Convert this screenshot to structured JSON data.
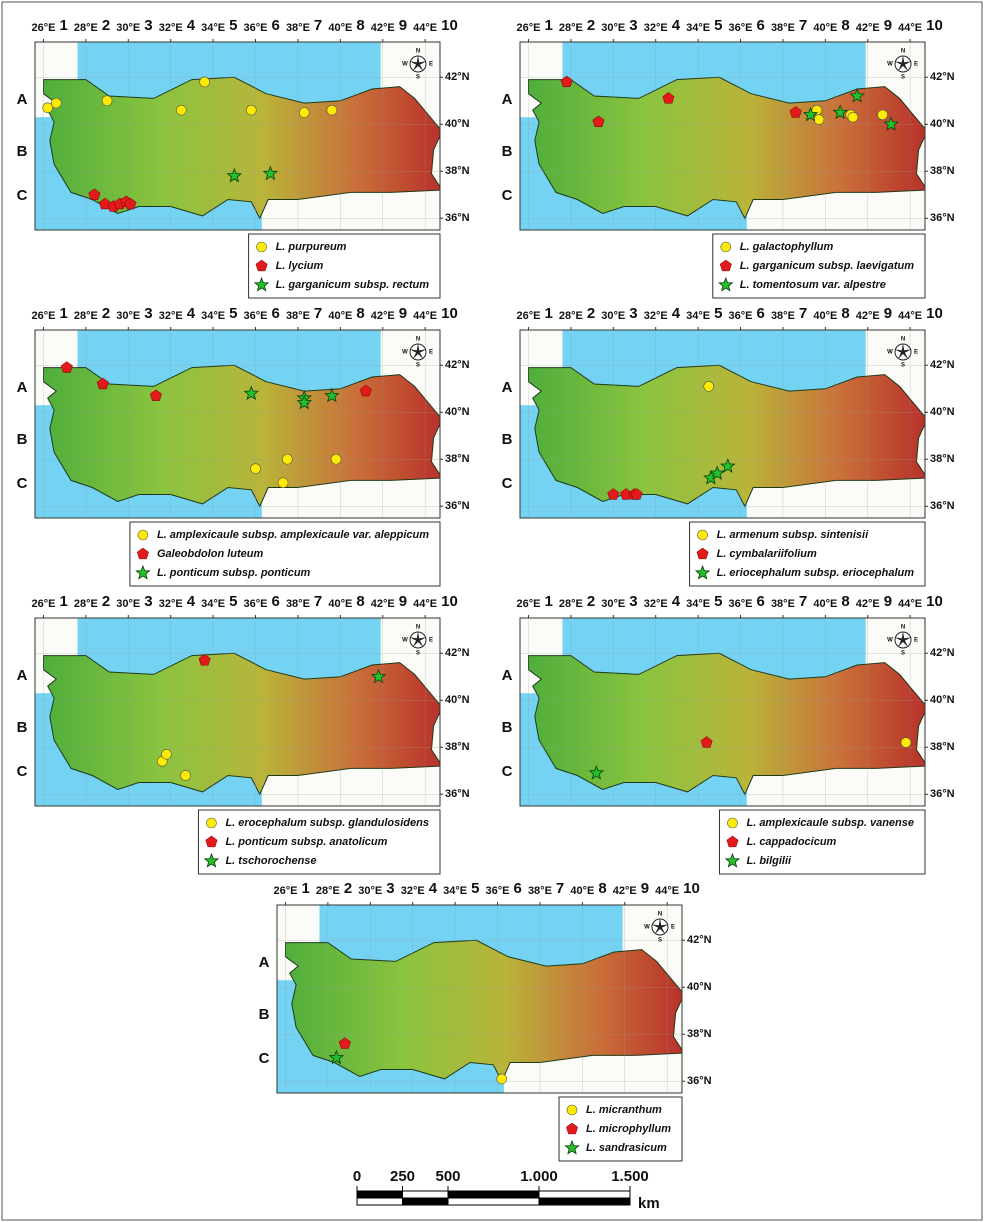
{
  "chart_data": [
    {
      "type": "map",
      "xlim": [
        25.6,
        44.7
      ],
      "ylim": [
        35.5,
        43.5
      ],
      "xticks": [
        {
          "value": 26,
          "label": "26°E"
        },
        {
          "value": 28,
          "label": "28°E"
        },
        {
          "value": 30,
          "label": "30°E"
        },
        {
          "value": 32,
          "label": "32°E"
        },
        {
          "value": 34,
          "label": "34°E"
        },
        {
          "value": 36,
          "label": "36°E"
        },
        {
          "value": 38,
          "label": "38°E"
        },
        {
          "value": 40,
          "label": "40°E"
        },
        {
          "value": 42,
          "label": "42°E"
        },
        {
          "value": 44,
          "label": "44°E"
        }
      ],
      "yticks": [
        {
          "value": 42,
          "label": "42°N"
        },
        {
          "value": 40,
          "label": "40°N"
        },
        {
          "value": 38,
          "label": "38°N"
        },
        {
          "value": 36,
          "label": "36°N"
        }
      ],
      "grid_columns": [
        "1",
        "2",
        "3",
        "4",
        "5",
        "6",
        "7",
        "8",
        "9",
        "10"
      ],
      "grid_rows": [
        "A",
        "B",
        "C"
      ],
      "compass": [
        "N",
        "E",
        "S",
        "W"
      ],
      "grid": true,
      "series": [
        {
          "name": "L. purpureum",
          "color": "#ffeb00",
          "marker": "circle",
          "x": [
            26.2,
            26.6,
            29.0,
            32.5,
            33.6,
            35.8,
            38.3,
            39.6
          ],
          "values": [
            40.7,
            40.9,
            41.0,
            40.6,
            41.8,
            40.6,
            40.5,
            40.6
          ]
        },
        {
          "name": "L. lycium",
          "color": "#e31a1c",
          "marker": "pentagon",
          "x": [
            28.4,
            28.9,
            29.3,
            29.6,
            29.9,
            30.1
          ],
          "values": [
            37.0,
            36.6,
            36.5,
            36.6,
            36.7,
            36.6
          ]
        },
        {
          "name": "L. garganicum subsp. rectum",
          "color": "#22c02a",
          "marker": "star",
          "x": [
            35.0,
            36.7
          ],
          "values": [
            37.8,
            37.9
          ]
        }
      ]
    },
    {
      "type": "map",
      "xlim": [
        25.6,
        44.7
      ],
      "ylim": [
        35.5,
        43.5
      ],
      "xticks": [
        {
          "value": 26,
          "label": "26°E"
        },
        {
          "value": 28,
          "label": "28°E"
        },
        {
          "value": 30,
          "label": "30°E"
        },
        {
          "value": 32,
          "label": "32°E"
        },
        {
          "value": 34,
          "label": "34°E"
        },
        {
          "value": 36,
          "label": "36°E"
        },
        {
          "value": 38,
          "label": "38°E"
        },
        {
          "value": 40,
          "label": "40°E"
        },
        {
          "value": 42,
          "label": "42°E"
        },
        {
          "value": 44,
          "label": "44°E"
        }
      ],
      "yticks": [
        {
          "value": 42,
          "label": "42°N"
        },
        {
          "value": 40,
          "label": "40°N"
        },
        {
          "value": 38,
          "label": "38°N"
        },
        {
          "value": 36,
          "label": "36°N"
        }
      ],
      "grid_columns": [
        "1",
        "2",
        "3",
        "4",
        "5",
        "6",
        "7",
        "8",
        "9",
        "10"
      ],
      "grid_rows": [
        "A",
        "B",
        "C"
      ],
      "compass": [
        "N",
        "E",
        "S",
        "W"
      ],
      "grid": true,
      "series": [
        {
          "name": "L. galactophyllum",
          "color": "#ffeb00",
          "marker": "circle",
          "x": [
            39.6,
            39.7,
            41.2,
            41.3,
            42.7
          ],
          "values": [
            40.6,
            40.2,
            40.4,
            40.3,
            40.4
          ]
        },
        {
          "name": "L. garganicum subsp. laevigatum",
          "color": "#e31a1c",
          "marker": "pentagon",
          "x": [
            27.8,
            29.3,
            32.6,
            38.6
          ],
          "values": [
            41.8,
            40.1,
            41.1,
            40.5
          ]
        },
        {
          "name": "L. tomentosum var. alpestre",
          "color": "#22c02a",
          "marker": "star",
          "x": [
            39.3,
            40.7,
            41.5,
            43.1
          ],
          "values": [
            40.4,
            40.5,
            41.2,
            40.0
          ]
        }
      ]
    },
    {
      "type": "map",
      "xlim": [
        25.6,
        44.7
      ],
      "ylim": [
        35.5,
        43.5
      ],
      "xticks": [
        {
          "value": 26,
          "label": "26°E"
        },
        {
          "value": 28,
          "label": "28°E"
        },
        {
          "value": 30,
          "label": "30°E"
        },
        {
          "value": 32,
          "label": "32°E"
        },
        {
          "value": 34,
          "label": "34°E"
        },
        {
          "value": 36,
          "label": "36°E"
        },
        {
          "value": 38,
          "label": "38°E"
        },
        {
          "value": 40,
          "label": "40°E"
        },
        {
          "value": 42,
          "label": "42°E"
        },
        {
          "value": 44,
          "label": "44°E"
        }
      ],
      "yticks": [
        {
          "value": 42,
          "label": "42°N"
        },
        {
          "value": 40,
          "label": "40°N"
        },
        {
          "value": 38,
          "label": "38°N"
        },
        {
          "value": 36,
          "label": "36°N"
        }
      ],
      "grid_columns": [
        "1",
        "2",
        "3",
        "4",
        "5",
        "6",
        "7",
        "8",
        "9",
        "10"
      ],
      "grid_rows": [
        "A",
        "B",
        "C"
      ],
      "compass": [
        "N",
        "E",
        "S",
        "W"
      ],
      "grid": true,
      "series": [
        {
          "name": "L. amplexicaule subsp. amplexicaule var. aleppicum",
          "color": "#ffeb00",
          "marker": "circle",
          "x": [
            36.0,
            37.3,
            37.5,
            39.8
          ],
          "values": [
            37.6,
            37.0,
            38.0,
            38.0
          ]
        },
        {
          "name": "Galeobdolon luteum",
          "color": "#e31a1c",
          "marker": "pentagon",
          "x": [
            27.1,
            28.8,
            31.3,
            41.2
          ],
          "values": [
            41.9,
            41.2,
            40.7,
            40.9
          ]
        },
        {
          "name": "L. ponticum subsp. ponticum",
          "color": "#22c02a",
          "marker": "star",
          "x": [
            35.8,
            38.3,
            38.3,
            39.6
          ],
          "values": [
            40.8,
            40.6,
            40.4,
            40.7
          ]
        }
      ]
    },
    {
      "type": "map",
      "xlim": [
        25.6,
        44.7
      ],
      "ylim": [
        35.5,
        43.5
      ],
      "xticks": [
        {
          "value": 26,
          "label": "26°E"
        },
        {
          "value": 28,
          "label": "28°E"
        },
        {
          "value": 30,
          "label": "30°E"
        },
        {
          "value": 32,
          "label": "32°E"
        },
        {
          "value": 34,
          "label": "34°E"
        },
        {
          "value": 36,
          "label": "36°E"
        },
        {
          "value": 38,
          "label": "38°E"
        },
        {
          "value": 40,
          "label": "40°E"
        },
        {
          "value": 42,
          "label": "42°E"
        },
        {
          "value": 44,
          "label": "44°E"
        }
      ],
      "yticks": [
        {
          "value": 42,
          "label": "42°N"
        },
        {
          "value": 40,
          "label": "40°N"
        },
        {
          "value": 38,
          "label": "38°N"
        },
        {
          "value": 36,
          "label": "36°N"
        }
      ],
      "grid_columns": [
        "1",
        "2",
        "3",
        "4",
        "5",
        "6",
        "7",
        "8",
        "9",
        "10"
      ],
      "grid_rows": [
        "A",
        "B",
        "C"
      ],
      "compass": [
        "N",
        "E",
        "S",
        "W"
      ],
      "grid": true,
      "series": [
        {
          "name": "L. armenum subsp. sintenisii",
          "color": "#ffeb00",
          "marker": "circle",
          "x": [
            34.5
          ],
          "values": [
            41.1
          ]
        },
        {
          "name": "L. cymbalariifolium",
          "color": "#e31a1c",
          "marker": "pentagon",
          "x": [
            30.0,
            30.6,
            31.0,
            31.1
          ],
          "values": [
            36.5,
            36.5,
            36.5,
            36.5
          ]
        },
        {
          "name": "L. eriocephalum subsp. eriocephalum",
          "color": "#22c02a",
          "marker": "star",
          "x": [
            34.6,
            34.9,
            35.4
          ],
          "values": [
            37.2,
            37.4,
            37.7
          ]
        }
      ]
    },
    {
      "type": "map",
      "xlim": [
        25.6,
        44.7
      ],
      "ylim": [
        35.5,
        43.5
      ],
      "xticks": [
        {
          "value": 26,
          "label": "26°E"
        },
        {
          "value": 28,
          "label": "28°E"
        },
        {
          "value": 30,
          "label": "30°E"
        },
        {
          "value": 32,
          "label": "32°E"
        },
        {
          "value": 34,
          "label": "34°E"
        },
        {
          "value": 36,
          "label": "36°E"
        },
        {
          "value": 38,
          "label": "38°E"
        },
        {
          "value": 40,
          "label": "40°E"
        },
        {
          "value": 42,
          "label": "42°E"
        },
        {
          "value": 44,
          "label": "44°E"
        }
      ],
      "yticks": [
        {
          "value": 42,
          "label": "42°N"
        },
        {
          "value": 40,
          "label": "40°N"
        },
        {
          "value": 38,
          "label": "38°N"
        },
        {
          "value": 36,
          "label": "36°N"
        }
      ],
      "grid_columns": [
        "1",
        "2",
        "3",
        "4",
        "5",
        "6",
        "7",
        "8",
        "9",
        "10"
      ],
      "grid_rows": [
        "A",
        "B",
        "C"
      ],
      "compass": [
        "N",
        "E",
        "S",
        "W"
      ],
      "grid": true,
      "series": [
        {
          "name": "L. erocephalum subsp. glandulosidens",
          "color": "#ffeb00",
          "marker": "circle",
          "x": [
            31.6,
            31.8,
            32.7
          ],
          "values": [
            37.4,
            37.7,
            36.8
          ]
        },
        {
          "name": "L. ponticum subsp. anatolicum",
          "color": "#e31a1c",
          "marker": "pentagon",
          "x": [
            33.6
          ],
          "values": [
            41.7
          ]
        },
        {
          "name": "L. tschorochense",
          "color": "#22c02a",
          "marker": "star",
          "x": [
            41.8
          ],
          "values": [
            41.0
          ]
        }
      ]
    },
    {
      "type": "map",
      "xlim": [
        25.6,
        44.7
      ],
      "ylim": [
        35.5,
        43.5
      ],
      "xticks": [
        {
          "value": 26,
          "label": "26°E"
        },
        {
          "value": 28,
          "label": "28°E"
        },
        {
          "value": 30,
          "label": "30°E"
        },
        {
          "value": 32,
          "label": "32°E"
        },
        {
          "value": 34,
          "label": "34°E"
        },
        {
          "value": 36,
          "label": "36°E"
        },
        {
          "value": 38,
          "label": "38°E"
        },
        {
          "value": 40,
          "label": "40°E"
        },
        {
          "value": 42,
          "label": "42°E"
        },
        {
          "value": 44,
          "label": "44°E"
        }
      ],
      "yticks": [
        {
          "value": 42,
          "label": "42°N"
        },
        {
          "value": 40,
          "label": "40°N"
        },
        {
          "value": 38,
          "label": "38°N"
        },
        {
          "value": 36,
          "label": "36°N"
        }
      ],
      "grid_columns": [
        "1",
        "2",
        "3",
        "4",
        "5",
        "6",
        "7",
        "8",
        "9",
        "10"
      ],
      "grid_rows": [
        "A",
        "B",
        "C"
      ],
      "compass": [
        "N",
        "E",
        "S",
        "W"
      ],
      "grid": true,
      "series": [
        {
          "name": "L. amplexicaule subsp. vanense",
          "color": "#ffeb00",
          "marker": "circle",
          "x": [
            43.8
          ],
          "values": [
            38.2
          ]
        },
        {
          "name": "L. cappadocicum",
          "color": "#e31a1c",
          "marker": "pentagon",
          "x": [
            34.4
          ],
          "values": [
            38.2
          ]
        },
        {
          "name": "L. bilgilii",
          "color": "#22c02a",
          "marker": "star",
          "x": [
            29.2
          ],
          "values": [
            36.9
          ]
        }
      ]
    },
    {
      "type": "map",
      "xlim": [
        25.6,
        44.7
      ],
      "ylim": [
        35.5,
        43.5
      ],
      "xticks": [
        {
          "value": 26,
          "label": "26°E"
        },
        {
          "value": 28,
          "label": "28°E"
        },
        {
          "value": 30,
          "label": "30°E"
        },
        {
          "value": 32,
          "label": "32°E"
        },
        {
          "value": 34,
          "label": "34°E"
        },
        {
          "value": 36,
          "label": "36°E"
        },
        {
          "value": 38,
          "label": "38°E"
        },
        {
          "value": 40,
          "label": "40°E"
        },
        {
          "value": 42,
          "label": "42°E"
        },
        {
          "value": 44,
          "label": "44°E"
        }
      ],
      "yticks": [
        {
          "value": 42,
          "label": "42°N"
        },
        {
          "value": 40,
          "label": "40°N"
        },
        {
          "value": 38,
          "label": "38°N"
        },
        {
          "value": 36,
          "label": "36°N"
        }
      ],
      "grid_columns": [
        "1",
        "2",
        "3",
        "4",
        "5",
        "6",
        "7",
        "8",
        "9",
        "10"
      ],
      "grid_rows": [
        "A",
        "B",
        "C"
      ],
      "compass": [
        "N",
        "E",
        "S",
        "W"
      ],
      "grid": true,
      "series": [
        {
          "name": "L. micranthum",
          "color": "#ffeb00",
          "marker": "circle",
          "x": [
            36.2
          ],
          "values": [
            36.1
          ]
        },
        {
          "name": "L. microphyllum",
          "color": "#e31a1c",
          "marker": "pentagon",
          "x": [
            28.8
          ],
          "values": [
            37.6
          ]
        },
        {
          "name": "L. sandrasicum",
          "color": "#22c02a",
          "marker": "star",
          "x": [
            28.4
          ],
          "values": [
            37.0
          ]
        }
      ]
    }
  ],
  "scale_bar": {
    "ticks": [
      {
        "value": 0,
        "label": "0"
      },
      {
        "value": 250,
        "label": "250"
      },
      {
        "value": 500,
        "label": "500"
      },
      {
        "value": 1000,
        "label": "1.000"
      },
      {
        "value": 1500,
        "label": "1.500"
      }
    ],
    "unit": "km"
  }
}
